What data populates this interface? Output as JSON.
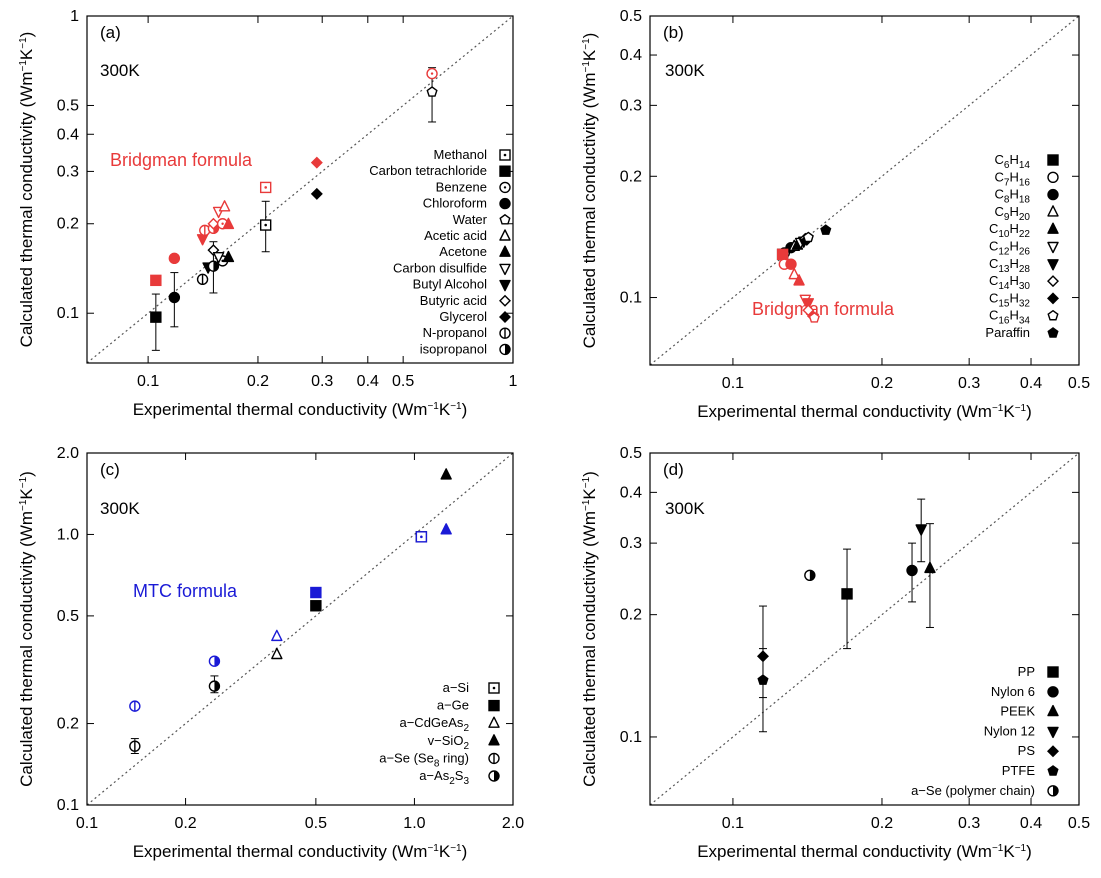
{
  "chart_data": [
    {
      "panel": "(a)",
      "type": "scatter",
      "temperature": "300K",
      "xlabel": "Experimental thermal conductivity (Wm⁻¹K⁻¹)",
      "ylabel": "Calculated thermal conductivity (Wm⁻¹K⁻¹)",
      "xscale": "log",
      "yscale": "log",
      "xlim": [
        0.068,
        1
      ],
      "ylim": [
        0.068,
        1
      ],
      "xticks": [
        "0.1",
        "0.2",
        "0.3",
        "0.4",
        "0.5",
        "1"
      ],
      "yticks": [
        "0.1",
        "0.2",
        "0.3",
        "0.4",
        "0.5",
        "1"
      ],
      "diagonal": "y = x",
      "annotation": {
        "text": "Bridgman formula",
        "color": "#e83a3a"
      },
      "legend_position": "right",
      "legend": [
        {
          "label": "Methanol",
          "marker": "square-dot"
        },
        {
          "label": "Carbon tetrachloride",
          "marker": "square-filled"
        },
        {
          "label": "Benzene",
          "marker": "circle-dot"
        },
        {
          "label": "Chloroform",
          "marker": "circle-filled"
        },
        {
          "label": "Water",
          "marker": "pentagon-open"
        },
        {
          "label": "Acetic acid",
          "marker": "triangle-up-open"
        },
        {
          "label": "Acetone",
          "marker": "triangle-up-filled"
        },
        {
          "label": "Carbon disulfide",
          "marker": "triangle-down-open"
        },
        {
          "label": "Butyl Alcohol",
          "marker": "triangle-down-filled"
        },
        {
          "label": "Butyric acid",
          "marker": "diamond-open"
        },
        {
          "label": "Glycerol",
          "marker": "diamond-filled"
        },
        {
          "label": "N-propanol",
          "marker": "circle-vbar"
        },
        {
          "label": "isopropanol",
          "marker": "circle-half"
        }
      ],
      "points": [
        {
          "x": 0.105,
          "y": 0.097,
          "yerr": [
            0.075,
            0.116
          ],
          "marker": "square-filled",
          "color": "#000000"
        },
        {
          "x": 0.118,
          "y": 0.113,
          "yerr": [
            0.09,
            0.137
          ],
          "marker": "circle-filled",
          "color": "#000000"
        },
        {
          "x": 0.141,
          "y": 0.13,
          "marker": "circle-vbar",
          "color": "#000000"
        },
        {
          "x": 0.146,
          "y": 0.143,
          "marker": "triangle-down-filled",
          "color": "#000000"
        },
        {
          "x": 0.151,
          "y": 0.144,
          "yerr": [
            0.117,
            0.174
          ],
          "marker": "circle-half",
          "color": "#000000"
        },
        {
          "x": 0.151,
          "y": 0.163,
          "marker": "diamond-open",
          "color": "#000000"
        },
        {
          "x": 0.16,
          "y": 0.15,
          "marker": "circle-dot",
          "color": "#000000"
        },
        {
          "x": 0.156,
          "y": 0.155,
          "marker": "triangle-down-open",
          "color": "#000000"
        },
        {
          "x": 0.166,
          "y": 0.154,
          "marker": "triangle-up-filled",
          "color": "#000000"
        },
        {
          "x": 0.21,
          "y": 0.198,
          "yerr": [
            0.161,
            0.238
          ],
          "marker": "square-dot",
          "color": "#000000"
        },
        {
          "x": 0.29,
          "y": 0.252,
          "marker": "diamond-filled",
          "color": "#000000"
        },
        {
          "x": 0.6,
          "y": 0.555,
          "yerr": [
            0.44,
            0.67
          ],
          "marker": "pentagon-open",
          "color": "#000000"
        },
        {
          "x": 0.105,
          "y": 0.129,
          "marker": "square-filled",
          "color": "#e83a3a"
        },
        {
          "x": 0.118,
          "y": 0.153,
          "marker": "circle-filled",
          "color": "#e83a3a"
        },
        {
          "x": 0.141,
          "y": 0.178,
          "marker": "triangle-down-filled",
          "color": "#e83a3a"
        },
        {
          "x": 0.143,
          "y": 0.19,
          "marker": "circle-vbar",
          "color": "#e83a3a"
        },
        {
          "x": 0.151,
          "y": 0.193,
          "marker": "circle-half",
          "color": "#e83a3a"
        },
        {
          "x": 0.151,
          "y": 0.2,
          "marker": "diamond-open",
          "color": "#e83a3a"
        },
        {
          "x": 0.16,
          "y": 0.2,
          "marker": "circle-dot",
          "color": "#e83a3a"
        },
        {
          "x": 0.156,
          "y": 0.22,
          "marker": "triangle-down-open",
          "color": "#e83a3a"
        },
        {
          "x": 0.162,
          "y": 0.228,
          "marker": "triangle-up-open",
          "color": "#e83a3a"
        },
        {
          "x": 0.166,
          "y": 0.199,
          "marker": "triangle-up-filled",
          "color": "#e83a3a"
        },
        {
          "x": 0.21,
          "y": 0.265,
          "marker": "square-dot",
          "color": "#e83a3a"
        },
        {
          "x": 0.29,
          "y": 0.321,
          "marker": "diamond-filled",
          "color": "#e83a3a"
        },
        {
          "x": 0.6,
          "y": 0.64,
          "marker": "circle-dot",
          "color": "#e83a3a"
        }
      ]
    },
    {
      "panel": "(b)",
      "type": "scatter",
      "temperature": "300K",
      "xlabel": "Experimental thermal conductivity (Wm⁻¹K⁻¹)",
      "ylabel": "Calculated thermal conductivity (Wm⁻¹K⁻¹)",
      "xscale": "log",
      "yscale": "log",
      "xlim": [
        0.068,
        0.5
      ],
      "ylim": [
        0.068,
        0.5
      ],
      "xticks": [
        "0.1",
        "0.2",
        "0.3",
        "0.4",
        "0.5"
      ],
      "yticks": [
        "0.1",
        "0.2",
        "0.3",
        "0.4",
        "0.5"
      ],
      "diagonal": "y = x",
      "annotation": {
        "text": "Bridgman formula",
        "color": "#e83a3a"
      },
      "legend_position": "right",
      "legend": [
        {
          "label": "C6H14",
          "base": "C",
          "sub1": "6",
          "mid": "H",
          "sub2": "14",
          "marker": "square-filled"
        },
        {
          "label": "C7H16",
          "base": "C",
          "sub1": "7",
          "mid": "H",
          "sub2": "16",
          "marker": "circle-open"
        },
        {
          "label": "C8H18",
          "base": "C",
          "sub1": "8",
          "mid": "H",
          "sub2": "18",
          "marker": "circle-filled"
        },
        {
          "label": "C9H20",
          "base": "C",
          "sub1": "9",
          "mid": "H",
          "sub2": "20",
          "marker": "triangle-up-open"
        },
        {
          "label": "C10H22",
          "base": "C",
          "sub1": "10",
          "mid": "H",
          "sub2": "22",
          "marker": "triangle-up-filled"
        },
        {
          "label": "C12H26",
          "base": "C",
          "sub1": "12",
          "mid": "H",
          "sub2": "26",
          "marker": "triangle-down-open"
        },
        {
          "label": "C13H28",
          "base": "C",
          "sub1": "13",
          "mid": "H",
          "sub2": "28",
          "marker": "triangle-down-filled"
        },
        {
          "label": "C14H30",
          "base": "C",
          "sub1": "14",
          "mid": "H",
          "sub2": "30",
          "marker": "diamond-open"
        },
        {
          "label": "C15H32",
          "base": "C",
          "sub1": "15",
          "mid": "H",
          "sub2": "32",
          "marker": "diamond-filled"
        },
        {
          "label": "C16H34",
          "base": "C",
          "sub1": "16",
          "mid": "H",
          "sub2": "34",
          "marker": "pentagon-open"
        },
        {
          "label": "Paraffin",
          "marker": "pentagon-filled"
        }
      ],
      "points": [
        {
          "x": 0.126,
          "y": 0.128,
          "marker": "square-filled",
          "color": "#000000"
        },
        {
          "x": 0.127,
          "y": 0.129,
          "marker": "circle-open",
          "color": "#000000"
        },
        {
          "x": 0.131,
          "y": 0.133,
          "marker": "circle-filled",
          "color": "#000000"
        },
        {
          "x": 0.133,
          "y": 0.134,
          "marker": "triangle-up-open",
          "color": "#000000"
        },
        {
          "x": 0.135,
          "y": 0.135,
          "marker": "triangle-up-filled",
          "color": "#000000"
        },
        {
          "x": 0.137,
          "y": 0.137,
          "marker": "triangle-down-open",
          "color": "#000000"
        },
        {
          "x": 0.139,
          "y": 0.138,
          "marker": "triangle-down-filled",
          "color": "#000000"
        },
        {
          "x": 0.14,
          "y": 0.14,
          "marker": "diamond-open",
          "color": "#000000"
        },
        {
          "x": 0.141,
          "y": 0.139,
          "marker": "diamond-filled",
          "color": "#000000"
        },
        {
          "x": 0.142,
          "y": 0.141,
          "marker": "pentagon-open",
          "color": "#000000"
        },
        {
          "x": 0.154,
          "y": 0.147,
          "marker": "pentagon-filled",
          "color": "#000000"
        },
        {
          "x": 0.126,
          "y": 0.128,
          "marker": "square-filled",
          "color": "#e83a3a"
        },
        {
          "x": 0.127,
          "y": 0.121,
          "marker": "circle-open",
          "color": "#e83a3a"
        },
        {
          "x": 0.131,
          "y": 0.121,
          "marker": "circle-filled",
          "color": "#e83a3a"
        },
        {
          "x": 0.133,
          "y": 0.114,
          "marker": "triangle-up-open",
          "color": "#e83a3a"
        },
        {
          "x": 0.136,
          "y": 0.11,
          "marker": "triangle-up-filled",
          "color": "#e83a3a"
        },
        {
          "x": 0.14,
          "y": 0.099,
          "marker": "triangle-down-open",
          "color": "#e83a3a"
        },
        {
          "x": 0.142,
          "y": 0.097,
          "marker": "triangle-down-filled",
          "color": "#e83a3a"
        },
        {
          "x": 0.142,
          "y": 0.093,
          "marker": "diamond-open",
          "color": "#e83a3a"
        },
        {
          "x": 0.145,
          "y": 0.09,
          "marker": "diamond-filled",
          "color": "#e83a3a"
        },
        {
          "x": 0.146,
          "y": 0.089,
          "marker": "pentagon-open",
          "color": "#e83a3a"
        }
      ]
    },
    {
      "panel": "(c)",
      "type": "scatter",
      "temperature": "300K",
      "xlabel": "Experimental thermal conductivity (Wm⁻¹K⁻¹)",
      "ylabel": "Calculated thermal conductivity (Wm⁻¹K⁻¹)",
      "xscale": "log",
      "yscale": "log",
      "xlim": [
        0.1,
        2.0
      ],
      "ylim": [
        0.1,
        2.0
      ],
      "xticks": [
        "0.1",
        "0.2",
        "0.5",
        "1.0",
        "2.0"
      ],
      "yticks": [
        "0.1",
        "0.2",
        "0.5",
        "1.0",
        "2.0"
      ],
      "diagonal": "y = x",
      "annotation": {
        "text": "MTC formula",
        "color": "#1a1ad6"
      },
      "legend_position": "bottom-right",
      "legend": [
        {
          "label": "a−Si",
          "marker": "square-dot"
        },
        {
          "label": "a−Ge",
          "marker": "square-filled"
        },
        {
          "label": "a−CdGeAs2",
          "text": "a−CdGeAs",
          "sub": "2",
          "marker": "triangle-up-open"
        },
        {
          "label": "v−SiO2",
          "text": "v−SiO",
          "sub": "2",
          "marker": "triangle-up-filled"
        },
        {
          "label": "a−Se (Se8 ring)",
          "text": "a−Se (Se",
          "sub": "8",
          "after": " ring)",
          "marker": "circle-vbar"
        },
        {
          "label": "a−As2S3",
          "text": "a−As",
          "sub": "2",
          "after": "S",
          "sub2": "3",
          "marker": "circle-half"
        }
      ],
      "points": [
        {
          "x": 1.05,
          "y": 0.98,
          "marker": "square-dot",
          "color": "#000000"
        },
        {
          "x": 0.5,
          "y": 0.545,
          "marker": "square-filled",
          "color": "#000000"
        },
        {
          "x": 0.38,
          "y": 0.36,
          "marker": "triangle-up-open",
          "color": "#000000"
        },
        {
          "x": 1.25,
          "y": 1.66,
          "marker": "triangle-up-filled",
          "color": "#000000"
        },
        {
          "x": 0.14,
          "y": 0.165,
          "yerr": [
            0.155,
            0.176
          ],
          "marker": "circle-vbar",
          "color": "#000000"
        },
        {
          "x": 0.245,
          "y": 0.275,
          "yerr": [
            0.26,
            0.3
          ],
          "marker": "circle-half",
          "color": "#000000"
        },
        {
          "x": 1.05,
          "y": 0.98,
          "marker": "square-dot",
          "color": "#1a1ad6"
        },
        {
          "x": 0.5,
          "y": 0.61,
          "marker": "square-filled",
          "color": "#1a1ad6"
        },
        {
          "x": 0.38,
          "y": 0.42,
          "marker": "triangle-up-open",
          "color": "#1a1ad6"
        },
        {
          "x": 1.25,
          "y": 1.04,
          "marker": "triangle-up-filled",
          "color": "#1a1ad6"
        },
        {
          "x": 0.14,
          "y": 0.232,
          "marker": "circle-vbar",
          "color": "#1a1ad6"
        },
        {
          "x": 0.245,
          "y": 0.34,
          "marker": "circle-half",
          "color": "#1a1ad6"
        }
      ]
    },
    {
      "panel": "(d)",
      "type": "scatter",
      "temperature": "300K",
      "xlabel": "Experimental thermal conductivity (Wm⁻¹K⁻¹)",
      "ylabel": "Calculated thermal conductivity (Wm⁻¹K⁻¹)",
      "xscale": "log",
      "yscale": "log",
      "xlim": [
        0.068,
        0.5
      ],
      "ylim": [
        0.068,
        0.5
      ],
      "xticks": [
        "0.1",
        "0.2",
        "0.3",
        "0.4",
        "0.5"
      ],
      "yticks": [
        "0.1",
        "0.2",
        "0.3",
        "0.4",
        "0.5"
      ],
      "diagonal": "y = x",
      "legend_position": "bottom-right",
      "legend": [
        {
          "label": "PP",
          "marker": "square-filled"
        },
        {
          "label": "Nylon 6",
          "marker": "circle-filled"
        },
        {
          "label": "PEEK",
          "marker": "triangle-up-filled"
        },
        {
          "label": "Nylon 12",
          "marker": "triangle-down-filled"
        },
        {
          "label": "PS",
          "marker": "diamond-filled"
        },
        {
          "label": "PTFE",
          "marker": "pentagon-filled"
        },
        {
          "label": "a−Se (polymer chain)",
          "marker": "circle-half"
        }
      ],
      "points": [
        {
          "x": 0.17,
          "y": 0.225,
          "yerr": [
            0.165,
            0.29
          ],
          "marker": "square-filled",
          "color": "#000000"
        },
        {
          "x": 0.23,
          "y": 0.257,
          "yerr": [
            0.215,
            0.3
          ],
          "marker": "circle-filled",
          "color": "#000000"
        },
        {
          "x": 0.25,
          "y": 0.26,
          "yerr": [
            0.186,
            0.335
          ],
          "marker": "triangle-up-filled",
          "color": "#000000"
        },
        {
          "x": 0.24,
          "y": 0.325,
          "yerr": [
            0.27,
            0.385
          ],
          "marker": "triangle-down-filled",
          "color": "#000000"
        },
        {
          "x": 0.115,
          "y": 0.158,
          "yerr": [
            0.125,
            0.21
          ],
          "marker": "diamond-filled",
          "color": "#000000"
        },
        {
          "x": 0.115,
          "y": 0.138,
          "yerr": [
            0.103,
            0.165
          ],
          "marker": "pentagon-filled",
          "color": "#000000"
        },
        {
          "x": 0.143,
          "y": 0.25,
          "marker": "circle-half",
          "color": "#000000"
        }
      ]
    }
  ]
}
